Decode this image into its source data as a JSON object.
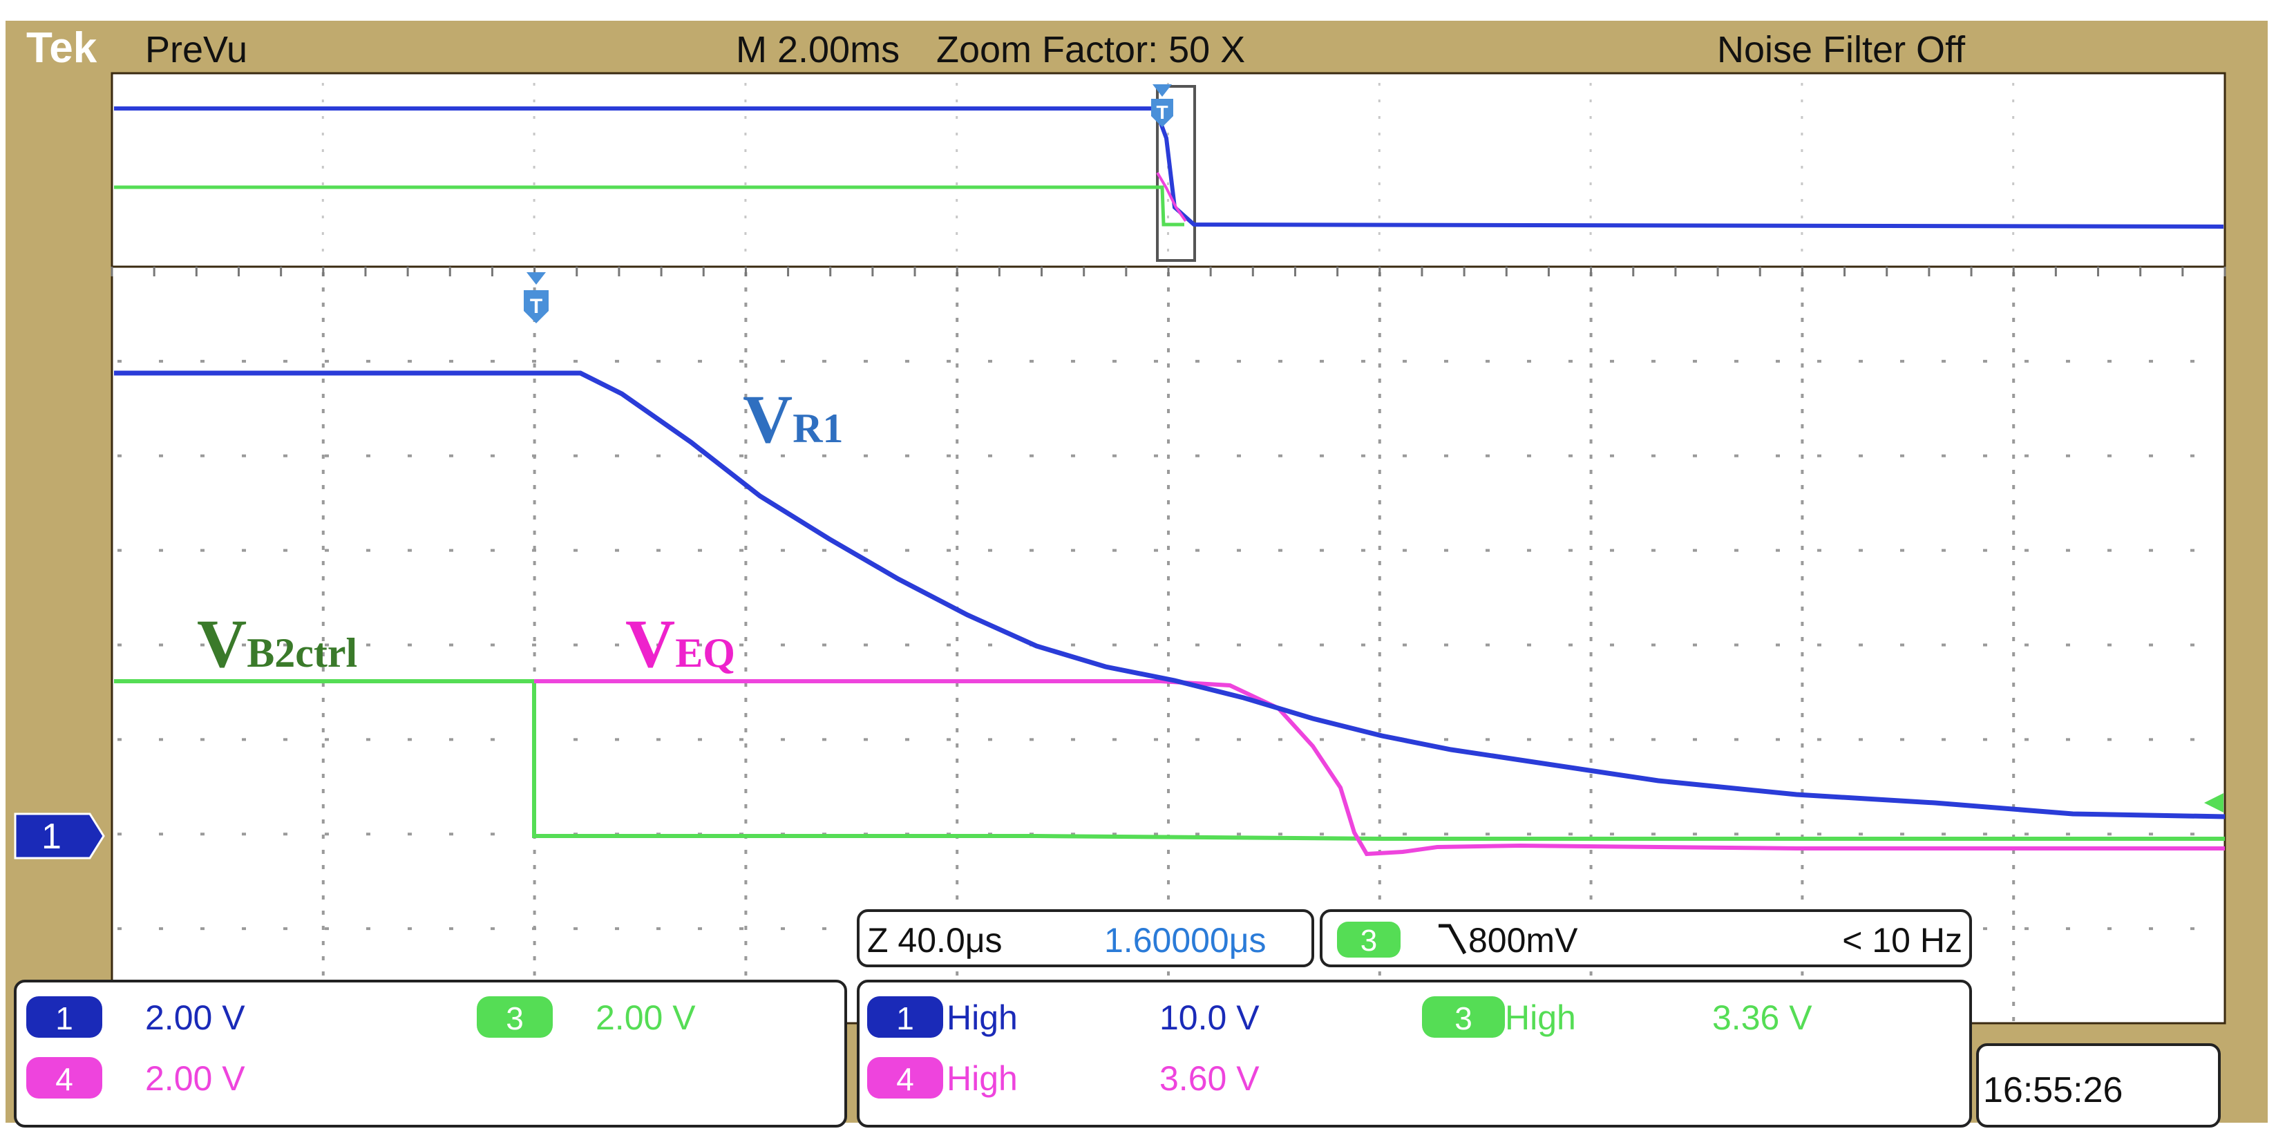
{
  "header": {
    "brand": "Tek",
    "mode": "PreVu",
    "timebase": "M 2.00ms",
    "zoom_factor": "Zoom Factor: 50 X",
    "noise_filter": "Noise Filter Off"
  },
  "zoom_readout": {
    "zoom_scale": "Z 40.0μs",
    "position": "1.60000μs",
    "trigger_channel": "3",
    "trigger_slope_icon": "falling-edge-icon",
    "trigger_level": "800mV",
    "trigger_freq": "< 10 Hz"
  },
  "channels": {
    "ch1": {
      "num": "1",
      "scale": "2.00 V"
    },
    "ch3": {
      "num": "3",
      "scale": "2.00 V"
    },
    "ch4": {
      "num": "4",
      "scale": "2.00 V"
    }
  },
  "measurements": {
    "ch1": {
      "num": "1",
      "label": "High",
      "value": "10.0 V"
    },
    "ch3": {
      "num": "3",
      "label": "High",
      "value": "3.36 V"
    },
    "ch4": {
      "num": "4",
      "label": "High",
      "value": "3.60 V"
    }
  },
  "ground_marker": "1",
  "clock": "16:55:26",
  "trace_labels": {
    "vr1": {
      "main": "V",
      "sub": "R1"
    },
    "vb2": {
      "main": "V",
      "sub": "B2ctrl"
    },
    "veq": {
      "main": "V",
      "sub": "EQ"
    }
  },
  "colors": {
    "frame": "#c0aa6e",
    "ch1": "#2a3cd8",
    "ch3": "#55dd55",
    "ch4": "#ee44dd",
    "trigger": "#4a90d9",
    "label_vr1": "#2f6fc0",
    "label_vb2": "#3a7a2a",
    "label_veq": "#ee22cc"
  }
}
